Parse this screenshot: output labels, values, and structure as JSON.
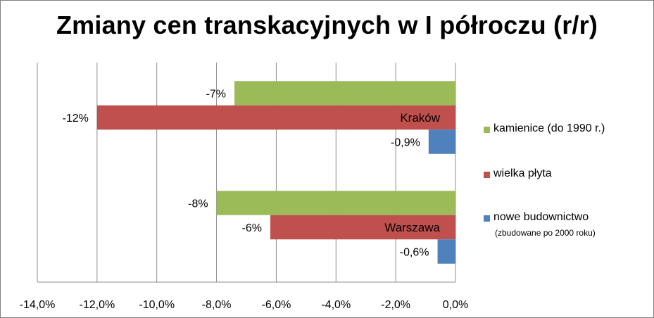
{
  "chart_data": {
    "type": "bar",
    "orientation": "horizontal",
    "title": "Zmiany cen transkacyjnych w I półroczu (r/r)",
    "categories": [
      "Kraków",
      "Warszawa"
    ],
    "series": [
      {
        "name": "kamienice (do 1990 r.)",
        "color": "#9bbb59",
        "values": [
          -7.4,
          -8.0
        ],
        "labels": [
          "-7%",
          "-8%"
        ]
      },
      {
        "name": "wielka płyta",
        "color": "#c0504d",
        "values": [
          -12.0,
          -6.2
        ],
        "labels": [
          "-12%",
          "-6%"
        ]
      },
      {
        "name": "nowe budownictwo",
        "sublabel": "(zbudowane po 2000 roku)",
        "color": "#4f81bd",
        "values": [
          -0.9,
          -0.6
        ],
        "labels": [
          "-0,9%",
          "-0,6%"
        ]
      }
    ],
    "xlim": [
      -14,
      0
    ],
    "xticks": [
      "-14,0%",
      "-12,0%",
      "-10,0%",
      "-8,0%",
      "-6,0%",
      "-4,0%",
      "-2,0%",
      "0,0%"
    ],
    "grid": true,
    "legend_position": "right"
  }
}
